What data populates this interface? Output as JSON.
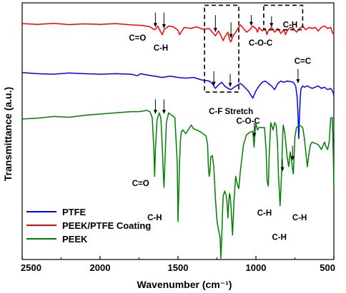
{
  "chart_data": {
    "type": "line",
    "xlabel": "Wavenumber (cm⁻¹)",
    "ylabel": "Transmittance (a.u.)",
    "xlim": [
      2500,
      500
    ],
    "x_reversed": true,
    "xticks": [
      2500,
      2000,
      1500,
      1000,
      500
    ],
    "xtick_labels": [
      "2500",
      "2000",
      "1500",
      "1000",
      "500"
    ],
    "yticks_shown": false,
    "grid": false,
    "legend_position": "bottom-left",
    "series": [
      {
        "name": "PEEK/PTFE Coating",
        "color": "#ff0000",
        "x": [
          2500,
          2400,
          2300,
          2200,
          2100,
          2000,
          1900,
          1800,
          1720,
          1680,
          1650,
          1640,
          1630,
          1610,
          1600,
          1590,
          1560,
          1530,
          1500,
          1490,
          1480,
          1460,
          1420,
          1380,
          1340,
          1300,
          1280,
          1260,
          1250,
          1240,
          1220,
          1210,
          1200,
          1180,
          1170,
          1160,
          1150,
          1140,
          1120,
          1100,
          1080,
          1060,
          1040,
          1020,
          1000,
          990,
          980,
          960,
          940,
          930,
          920,
          900,
          880,
          860,
          840,
          820,
          810,
          800,
          780,
          760,
          740,
          720,
          700,
          680,
          660,
          640,
          620,
          600,
          580,
          560,
          540,
          520,
          510,
          500
        ],
        "y": [
          9.65,
          9.62,
          9.66,
          9.61,
          9.64,
          9.62,
          9.65,
          9.6,
          9.57,
          9.52,
          9.4,
          9.45,
          9.55,
          9.3,
          9.2,
          9.4,
          9.55,
          9.52,
          9.38,
          9.2,
          9.3,
          9.5,
          9.45,
          9.52,
          9.42,
          9.45,
          9.3,
          9.15,
          9.25,
          9.35,
          9.1,
          8.95,
          9.1,
          9.3,
          9.0,
          8.9,
          9.1,
          9.2,
          9.4,
          9.6,
          9.45,
          9.3,
          9.4,
          9.55,
          9.45,
          9.3,
          9.5,
          9.35,
          9.45,
          9.2,
          9.35,
          9.5,
          9.3,
          9.45,
          9.25,
          9.4,
          9.2,
          9.35,
          9.5,
          9.45,
          9.3,
          9.45,
          9.55,
          9.4,
          9.5,
          9.45,
          9.5,
          9.35,
          9.5,
          9.55,
          9.45,
          9.5,
          9.3,
          9.2
        ]
      },
      {
        "name": "PTFE",
        "color": "#0000ff",
        "x": [
          2500,
          2400,
          2300,
          2200,
          2100,
          2000,
          1900,
          1800,
          1760,
          1740,
          1700,
          1650,
          1600,
          1550,
          1500,
          1450,
          1400,
          1350,
          1300,
          1280,
          1260,
          1240,
          1220,
          1200,
          1180,
          1160,
          1140,
          1100,
          1080,
          1050,
          1020,
          1010,
          1000,
          980,
          960,
          940,
          900,
          880,
          860,
          840,
          820,
          800,
          780,
          760,
          745,
          735,
          730,
          725,
          720,
          715,
          710,
          700,
          690,
          670,
          640,
          620,
          600,
          580,
          560,
          540,
          520,
          505,
          500
        ],
        "y": [
          7.65,
          7.6,
          7.58,
          7.63,
          7.6,
          7.58,
          7.6,
          7.58,
          7.52,
          7.6,
          7.55,
          7.5,
          7.45,
          7.5,
          7.45,
          7.42,
          7.45,
          7.35,
          7.3,
          7.2,
          7.0,
          7.15,
          7.25,
          7.1,
          7.0,
          6.95,
          7.05,
          7.2,
          7.1,
          6.9,
          6.6,
          6.75,
          6.9,
          7.1,
          7.25,
          7.3,
          7.1,
          6.95,
          7.2,
          7.3,
          7.25,
          7.3,
          7.28,
          7.25,
          7.1,
          6.6,
          5.9,
          4.95,
          5.9,
          6.7,
          7.0,
          7.1,
          7.05,
          7.1,
          7.0,
          7.05,
          7.1,
          7.0,
          7.05,
          6.95,
          7.0,
          6.85,
          6.7
        ]
      },
      {
        "name": "PEEK",
        "color": "#008000",
        "x": [
          2500,
          2400,
          2300,
          2200,
          2100,
          2000,
          1900,
          1800,
          1750,
          1700,
          1680,
          1665,
          1655,
          1650,
          1645,
          1635,
          1620,
          1610,
          1600,
          1595,
          1590,
          1585,
          1575,
          1560,
          1540,
          1520,
          1505,
          1500,
          1495,
          1490,
          1485,
          1480,
          1470,
          1450,
          1430,
          1415,
          1400,
          1380,
          1350,
          1320,
          1310,
          1305,
          1300,
          1295,
          1290,
          1280,
          1270,
          1260,
          1250,
          1240,
          1230,
          1225,
          1220,
          1215,
          1210,
          1200,
          1190,
          1185,
          1180,
          1175,
          1170,
          1165,
          1160,
          1150,
          1140,
          1130,
          1120,
          1110,
          1100,
          1080,
          1060,
          1040,
          1020,
          1012,
          1005,
          1000,
          990,
          980,
          960,
          945,
          935,
          928,
          920,
          915,
          905,
          890,
          880,
          870,
          862,
          855,
          845,
          835,
          830,
          825,
          815,
          800,
          790,
          780,
          770,
          765,
          760,
          755,
          750,
          740,
          720,
          700,
          690,
          680,
          670,
          660,
          650,
          640,
          620,
          600,
          580,
          560,
          550,
          540,
          530,
          520,
          510,
          505,
          500
        ],
        "y": [
          5.75,
          5.78,
          5.85,
          5.82,
          5.9,
          5.95,
          6.0,
          6.05,
          6.05,
          6.1,
          6.05,
          5.8,
          4.5,
          3.4,
          4.5,
          5.7,
          6.0,
          5.8,
          4.5,
          3.6,
          2.95,
          3.8,
          5.6,
          6.0,
          5.9,
          5.8,
          4.0,
          1.55,
          2.8,
          4.0,
          4.8,
          5.2,
          5.3,
          5.15,
          5.35,
          5.5,
          5.35,
          5.3,
          5.2,
          5.05,
          4.7,
          3.8,
          3.4,
          3.6,
          4.2,
          4.25,
          3.8,
          2.5,
          1.6,
          1.2,
          0.9,
          0.05,
          0.7,
          1.8,
          2.6,
          2.8,
          2.6,
          2.3,
          1.7,
          2.2,
          2.7,
          2.6,
          2.2,
          1.0,
          2.5,
          3.4,
          3.1,
          2.9,
          3.6,
          4.7,
          5.1,
          5.2,
          5.25,
          4.6,
          5.3,
          5.55,
          5.3,
          5.4,
          5.4,
          5.4,
          4.5,
          3.2,
          3.0,
          4.2,
          5.6,
          5.3,
          5.6,
          5.5,
          4.8,
          3.4,
          2.2,
          3.6,
          4.8,
          5.5,
          5.2,
          4.2,
          3.8,
          4.4,
          4.0,
          3.7,
          3.5,
          4.2,
          5.0,
          5.4,
          5.5,
          5.4,
          5.0,
          4.4,
          3.8,
          4.3,
          4.7,
          4.8,
          4.75,
          4.7,
          4.5,
          4.8,
          4.6,
          4.5,
          4.8,
          5.8,
          5.8,
          4.7,
          3.0
        ]
      }
    ],
    "annotations": [
      {
        "text": "C=O",
        "x": 1760,
        "y": 8.95
      },
      {
        "text": "C-H",
        "x": 1610,
        "y": 8.55
      },
      {
        "text": "C-O-C",
        "x": 970,
        "y": 8.75
      },
      {
        "text": "C-H",
        "x": 780,
        "y": 9.5
      },
      {
        "text": "C-F Stretch",
        "x": 1160,
        "y": 5.95
      },
      {
        "text": "C=C",
        "x": 700,
        "y": 8.0
      },
      {
        "text": "C-O-C",
        "x": 1050,
        "y": 5.55
      },
      {
        "text": "C=O",
        "x": 1740,
        "y": 3.0
      },
      {
        "text": "C-H",
        "x": 1650,
        "y": 1.6
      },
      {
        "text": "C-H",
        "x": 945,
        "y": 1.8
      },
      {
        "text": "C-H",
        "x": 850,
        "y": 0.8
      },
      {
        "text": "C-H",
        "x": 720,
        "y": 1.6
      }
    ],
    "arrows": [
      {
        "x": 1645,
        "y1": 10.1,
        "y2": 9.5
      },
      {
        "x": 1590,
        "y1": 10.1,
        "y2": 9.45
      },
      {
        "x": 1260,
        "y1": 10.0,
        "y2": 9.3
      },
      {
        "x": 1160,
        "y1": 9.7,
        "y2": 9.05
      },
      {
        "x": 1030,
        "y1": 10.0,
        "y2": 9.55
      },
      {
        "x": 900,
        "y1": 9.95,
        "y2": 9.5
      },
      {
        "x": 1270,
        "y1": 7.7,
        "y2": 7.1
      },
      {
        "x": 1165,
        "y1": 7.6,
        "y2": 7.05
      },
      {
        "x": 730,
        "y1": 7.8,
        "y2": 7.2
      },
      {
        "x": 1645,
        "y1": 6.55,
        "y2": 5.95
      },
      {
        "x": 1590,
        "y1": 6.55,
        "y2": 5.95
      },
      {
        "x": 1010,
        "y1": 5.6,
        "y2": 5.0
      },
      {
        "x": 830,
        "y1": 4.1,
        "y2": 3.6
      },
      {
        "x": 765,
        "y1": 4.65,
        "y2": 4.05
      }
    ],
    "boxes": [
      {
        "x0": 1330,
        "x1": 1110,
        "y0": 6.85,
        "y1": 10.4
      },
      {
        "x0": 950,
        "x1": 700,
        "y0": 9.4,
        "y1": 10.4
      }
    ]
  }
}
